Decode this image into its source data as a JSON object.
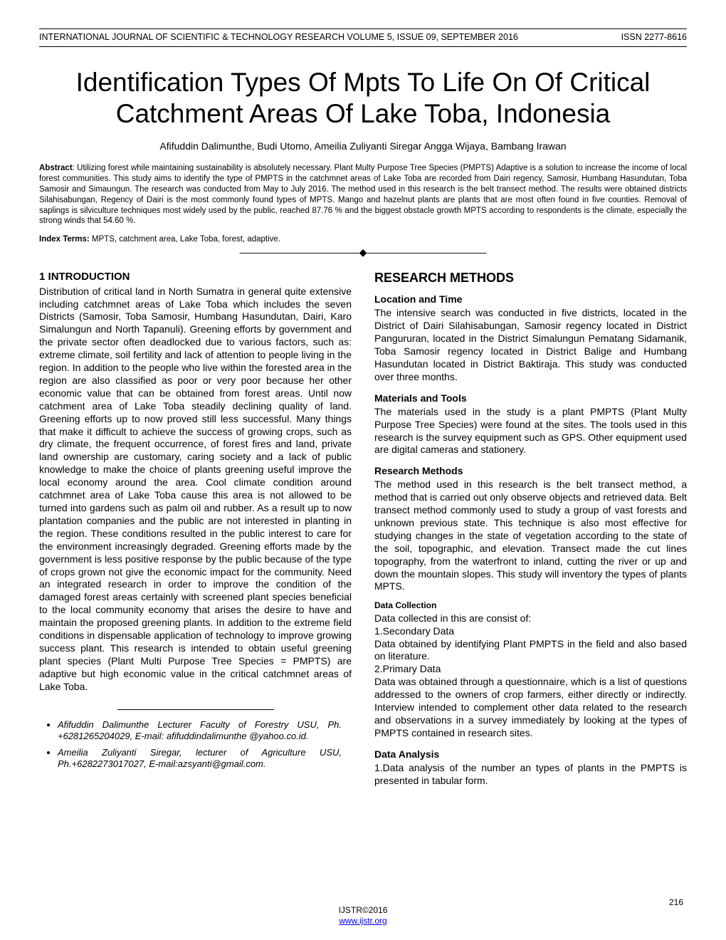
{
  "header": {
    "journal": "INTERNATIONAL JOURNAL OF SCIENTIFIC & TECHNOLOGY RESEARCH VOLUME 5, ISSUE 09, SEPTEMBER 2016",
    "issn": "ISSN 2277-8616"
  },
  "title": "Identification Types Of Mpts To Life On Of Critical Catchment Areas Of Lake Toba, Indonesia",
  "authors": "Afifuddin Dalimunthe, Budi Utomo, Ameilia Zuliyanti Siregar Angga Wijaya, Bambang Irawan",
  "abstract": {
    "label": "Abstract",
    "text": ": Utilizing forest while maintaining sustainability is absolutely necessary. Plant Multy Purpose Tree Species (PMPTS) Adaptive is a solution to increase the income of local forest communities. This study aims to identify the type of PMPTS in the catchmnet areas of Lake Toba are recorded from Dairi regency, Samosir, Humbang Hasundutan, Toba Samosir and Simaungun. The research was conducted from May to July 2016. The method used in this research is the belt transect method. The results were obtained districts Silahisabungan, Regency of Dairi is the most commonly found types of MPTS. Mango and hazelnut plants are plants that are most often found in five counties. Removal of saplings is silviculture techniques most widely used by the public, reached 87.76 % and the biggest obstacle growth MPTS according to respondents is the climate, especially the strong winds that 54.60 %."
  },
  "indexTerms": {
    "label": "Index Terms:",
    "text": " MPTS, catchment area, Lake Toba, forest, adaptive."
  },
  "divider": "————————————————————",
  "leftColumn": {
    "introHead": {
      "num": "1 I",
      "rest": "NTRODUCTION"
    },
    "introBody": "Distribution of critical land in North Sumatra in general quite extensive including catchmnet areas of Lake Toba which includes the seven Districts (Samosir, Toba Samosir, Humbang Hasundutan, Dairi, Karo Simalungun and North Tapanuli). Greening efforts by government and the private sector often deadlocked due to various factors, such as: extreme climate, soil fertility and lack of attention to people living in the region. In addition to the people who live within the forested area in the region are also classified as poor or very poor because her other economic value that can be obtained from forest areas. Until now catchment area of Lake Toba steadily declining quality of land. Greening efforts up to now proved still less successful. Many things that make it difficult to achieve the success of growing crops, such as dry climate, the frequent occurrence, of forest fires and land, private land ownership are customary, caring society and a lack of public knowledge to make the choice of plants greening useful improve the local economy around the area. Cool climate condition around catchmnet area of Lake Toba cause this area is not allowed to be turned into gardens such as palm oil and rubber. As a result up to now plantation companies and the public are not interested in planting in the region. These conditions resulted in the public interest to care for the environment increasingly degraded. Greening efforts made by the government is less positive response by the public because of the type of crops grown not give the economic impact for the community.  Need an integrated research in order to improve the condition of the damaged forest areas certainly with screened plant species beneficial to the local community economy that arises the desire to have and maintain the proposed greening plants. In addition to the extreme field conditions in dispensable application of technology to improve growing success plant. This research is intended to obtain useful greening plant species (Plant Multi Purpose Tree Species = PMPTS) are adaptive but high economic value in the critical catchmnet areas of Lake Toba."
  },
  "footnotes": [
    "Afifuddin Dalimunthe Lecturer Faculty of Forestry USU, Ph. +6281265204029, E-mail: afifuddindalimunthe @yahoo.co.id.",
    "Ameilia Zuliyanti Siregar, lecturer of Agriculture USU, Ph.+6282273017027, E-mail:azsyanti@gmail.com."
  ],
  "rightColumn": {
    "methodsHead": "RESEARCH METHODS",
    "locTimeHead": "Location and Time",
    "locTimeBody": "The intensive search was conducted in five districts, located in the District of Dairi Silahisabungan, Samosir regency located in District Pangururan, located in the District Simalungun Pematang Sidamanik, Toba Samosir regency located in District Balige and Humbang Hasundutan located in District Baktiraja. This study was conducted over three months.",
    "matToolsHead": "Materials and Tools",
    "matToolsBody": "The materials used in the study is a plant PMPTS (Plant Multy Purpose Tree Species) were found at the sites. The tools used in this research is the survey equipment such as GPS. Other equipment used are digital cameras and stationery.",
    "resMethHead": "Research Methods",
    "resMethBody": "The method used in this research is the belt transect method, a method that is carried out only observe objects and retrieved data. Belt transect method commonly used to study a group of vast forests and unknown previous state. This technique is also most effective for studying changes in the state of vegetation according to the state of the soil, topographic, and elevation. Transect made the cut lines topography, from the waterfront to inland, cutting the river or up and down the mountain slopes. This study will inventory the types of plants MPTS.",
    "dataCollHead": "Data Collection",
    "dataCollIntro": "Data collected in this are consist of:",
    "dataColl1Head": "1.Secondary Data",
    "dataColl1Body": "Data obtained by identifying Plant PMPTS in the field and also based on literature.",
    "dataColl2Head": "2.Primary Data",
    "dataColl2Body": "Data was obtained through a questionnaire, which is a list of questions addressed to the owners of crop farmers, either directly or indirectly. Interview intended to complement other data related to the research and observations in a survey immediately by looking at the types of PMPTS contained in research sites.",
    "dataAnalHead": "Data Analysis",
    "dataAnalBody": "1.Data analysis of the number an types of plants in the PMPTS is presented in tabular form."
  },
  "footer": {
    "copyright": "IJSTR©2016",
    "url": "www.ijstr.org"
  },
  "pageNumber": "216"
}
